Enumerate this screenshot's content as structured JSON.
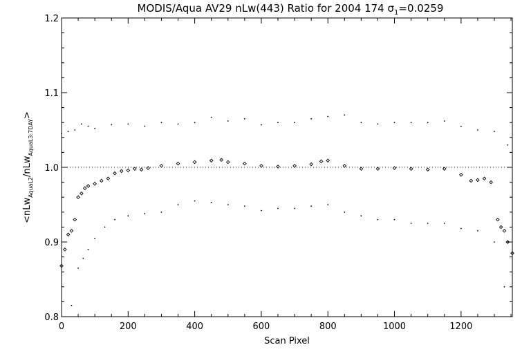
{
  "chart_data": {
    "type": "scatter",
    "title": {
      "main": "MODIS/Aqua AV29 nLw(443) Ratio for 2004 174 ",
      "sigma_symbol": "σ",
      "sigma_sub": "1",
      "sigma_value": "=0.0259"
    },
    "xlabel": "Scan Pixel",
    "ylabel": {
      "prefix": "<nLw",
      "sub1": "AquaL2",
      "mid": "/nLw",
      "sub2": "AquaL3:7DAY",
      "suffix": ">"
    },
    "xlim": [
      0,
      1354
    ],
    "ylim": [
      0.8,
      1.2
    ],
    "xticks": [
      0,
      200,
      400,
      600,
      800,
      1000,
      1200
    ],
    "xtick_labels": [
      "0",
      "200",
      "400",
      "600",
      "800",
      "1000",
      "1200"
    ],
    "yticks": [
      0.8,
      0.9,
      1.0,
      1.1,
      1.2
    ],
    "ytick_labels": [
      "0.8",
      "0.9",
      "1.0",
      "1.1",
      "1.2"
    ],
    "reference_line": 1.0,
    "series": [
      {
        "role": "mean ratio",
        "marker": "diamond",
        "x": [
          0,
          10,
          20,
          30,
          40,
          50,
          60,
          70,
          80,
          100,
          120,
          140,
          160,
          180,
          200,
          220,
          240,
          260,
          300,
          350,
          400,
          450,
          480,
          500,
          550,
          600,
          650,
          700,
          750,
          780,
          800,
          850,
          900,
          950,
          1000,
          1050,
          1100,
          1150,
          1200,
          1230,
          1250,
          1270,
          1290,
          1310,
          1320,
          1330,
          1340,
          1354
        ],
        "y": [
          0.868,
          0.89,
          0.91,
          0.915,
          0.93,
          0.96,
          0.965,
          0.972,
          0.975,
          0.978,
          0.982,
          0.985,
          0.992,
          0.995,
          0.996,
          0.998,
          0.997,
          0.999,
          1.002,
          1.005,
          1.007,
          1.009,
          1.01,
          1.007,
          1.005,
          1.002,
          1.001,
          1.002,
          1.004,
          1.008,
          1.009,
          1.002,
          0.998,
          0.998,
          0.999,
          0.998,
          0.997,
          0.998,
          0.99,
          0.982,
          0.983,
          0.985,
          0.98,
          0.93,
          0.92,
          0.915,
          0.9,
          0.885
        ]
      },
      {
        "role": "upper bound",
        "marker": "dot",
        "x": [
          0,
          20,
          40,
          60,
          80,
          100,
          150,
          200,
          250,
          300,
          350,
          400,
          450,
          500,
          550,
          600,
          650,
          700,
          750,
          800,
          850,
          900,
          950,
          1000,
          1050,
          1100,
          1150,
          1200,
          1250,
          1300,
          1340
        ],
        "y": [
          1.045,
          1.048,
          1.05,
          1.058,
          1.055,
          1.052,
          1.057,
          1.058,
          1.055,
          1.06,
          1.058,
          1.06,
          1.067,
          1.062,
          1.065,
          1.057,
          1.06,
          1.06,
          1.065,
          1.068,
          1.07,
          1.06,
          1.058,
          1.06,
          1.06,
          1.06,
          1.062,
          1.055,
          1.05,
          1.048,
          1.03
        ]
      },
      {
        "role": "lower bound",
        "marker": "dot",
        "x": [
          30,
          50,
          65,
          80,
          100,
          130,
          160,
          200,
          250,
          300,
          350,
          400,
          450,
          500,
          550,
          600,
          650,
          700,
          750,
          800,
          850,
          900,
          950,
          1000,
          1050,
          1100,
          1150,
          1200,
          1250,
          1300,
          1330
        ],
        "y": [
          0.815,
          0.865,
          0.878,
          0.89,
          0.905,
          0.92,
          0.93,
          0.935,
          0.938,
          0.94,
          0.95,
          0.955,
          0.953,
          0.95,
          0.948,
          0.942,
          0.945,
          0.945,
          0.948,
          0.95,
          0.94,
          0.935,
          0.93,
          0.93,
          0.925,
          0.925,
          0.925,
          0.918,
          0.915,
          0.9,
          0.84
        ]
      }
    ]
  }
}
